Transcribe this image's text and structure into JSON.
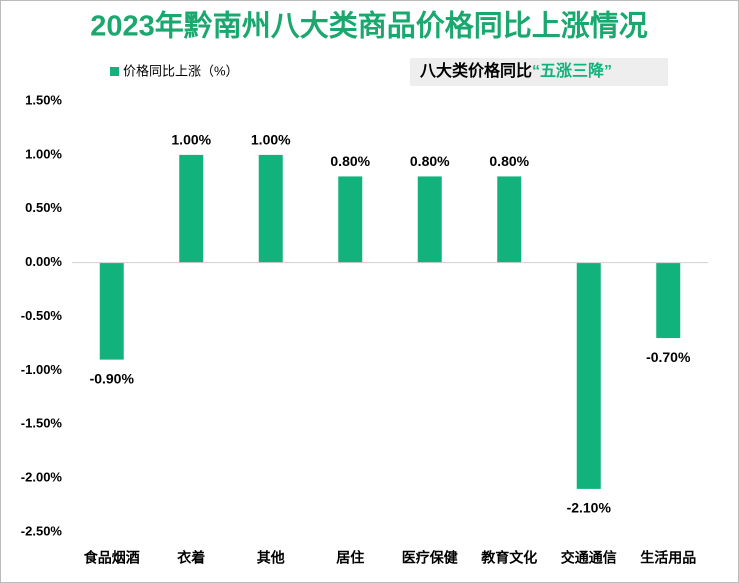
{
  "chart_data": {
    "type": "bar",
    "title": "2023年黔南州八大类商品价格同比上涨情况",
    "legend": "价格同比上涨（%）",
    "annotation": {
      "text": "八大类价格同比",
      "highlight": "“五涨三降”"
    },
    "categories": [
      "食品烟酒",
      "衣着",
      "其他",
      "居住",
      "医疗保健",
      "教育文化",
      "交通通信",
      "生活用品"
    ],
    "values": [
      -0.9,
      1.0,
      1.0,
      0.8,
      0.8,
      0.8,
      -2.1,
      -0.7
    ],
    "value_labels": [
      "-0.90%",
      "1.00%",
      "1.00%",
      "0.80%",
      "0.80%",
      "0.80%",
      "-2.10%",
      "-0.70%"
    ],
    "color": "#12b27d",
    "ylim": [
      -2.5,
      1.5
    ],
    "yticks": [
      {
        "value": 1.5,
        "label": "1.50%"
      },
      {
        "value": 1.0,
        "label": "1.00%"
      },
      {
        "value": 0.5,
        "label": "0.50%"
      },
      {
        "value": 0,
        "label": "0.00%"
      },
      {
        "value": -0.5,
        "label": "-0.50%"
      },
      {
        "value": -1.0,
        "label": "-1.00%"
      },
      {
        "value": -1.5,
        "label": "-1.50%"
      },
      {
        "value": -2.0,
        "label": "-2.00%"
      },
      {
        "value": -2.5,
        "label": "-2.50%"
      }
    ],
    "grid": false
  }
}
